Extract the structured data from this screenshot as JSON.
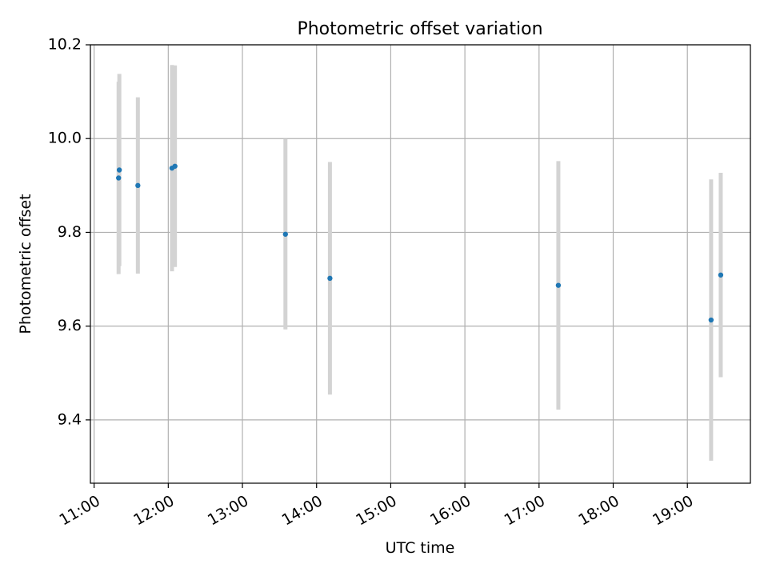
{
  "chart_data": {
    "type": "scatter",
    "title": "Photometric offset variation",
    "xlabel": "UTC time",
    "ylabel": "Photometric offset",
    "x_unit": "UTC time of day (hours)",
    "xlim": [
      10.95,
      19.85
    ],
    "ylim": [
      9.265,
      10.2
    ],
    "x_ticks": [
      11,
      12,
      13,
      14,
      15,
      16,
      17,
      18,
      19
    ],
    "x_tick_labels": [
      "11:00",
      "12:00",
      "13:00",
      "14:00",
      "15:00",
      "16:00",
      "17:00",
      "18:00",
      "19:00"
    ],
    "y_ticks": [
      9.4,
      9.6,
      9.8,
      10.0,
      10.2
    ],
    "y_tick_labels": [
      "9.4",
      "9.6",
      "9.8",
      "10.0",
      "10.2"
    ],
    "grid": true,
    "points": [
      {
        "x": 11.33,
        "y": 9.916,
        "err": 0.205
      },
      {
        "x": 11.34,
        "y": 9.933,
        "err": 0.205
      },
      {
        "x": 11.59,
        "y": 9.9,
        "err": 0.188
      },
      {
        "x": 12.05,
        "y": 9.937,
        "err": 0.22
      },
      {
        "x": 12.09,
        "y": 9.941,
        "err": 0.215
      },
      {
        "x": 13.58,
        "y": 9.796,
        "err": 0.203
      },
      {
        "x": 14.18,
        "y": 9.702,
        "err": 0.248
      },
      {
        "x": 17.26,
        "y": 9.687,
        "err": 0.265
      },
      {
        "x": 19.32,
        "y": 9.613,
        "err": 0.3
      },
      {
        "x": 19.45,
        "y": 9.709,
        "err": 0.218
      }
    ],
    "colors": {
      "marker": "#1f77b4",
      "errorbar": "#d3d3d3",
      "grid": "#b0b0b0",
      "axes": "#000000"
    }
  }
}
